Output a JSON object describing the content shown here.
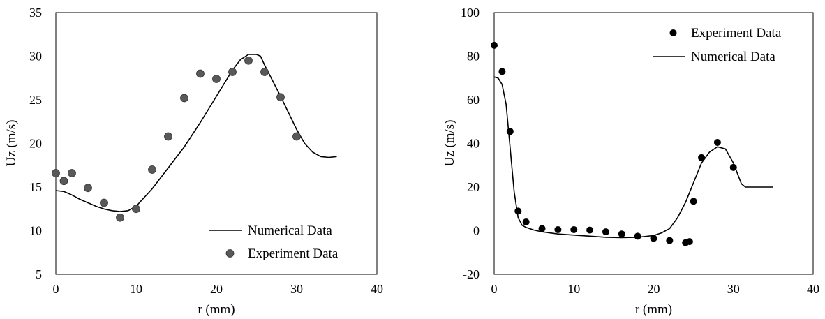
{
  "chart_data": [
    {
      "type": "scatter",
      "xlabel": "r (mm)",
      "ylabel": "Uz (m/s)",
      "xlim": [
        0,
        40
      ],
      "ylim": [
        5,
        35
      ],
      "xticks": [
        0,
        10,
        20,
        30,
        40
      ],
      "yticks": [
        5,
        10,
        15,
        20,
        25,
        30,
        35
      ],
      "legend_position": "bottom-right",
      "series": [
        {
          "name": "Numerical Data",
          "kind": "line",
          "color": "#000000",
          "x": [
            0,
            1,
            2,
            3,
            4,
            5,
            6,
            7,
            8,
            9,
            10,
            12,
            14,
            16,
            18,
            20,
            22,
            23,
            24,
            25,
            25.5,
            26,
            28,
            30,
            31,
            32,
            33,
            34,
            35
          ],
          "y": [
            14.6,
            14.5,
            14.1,
            13.6,
            13.2,
            12.8,
            12.5,
            12.3,
            12.2,
            12.3,
            12.8,
            14.8,
            17.2,
            19.6,
            22.4,
            25.4,
            28.4,
            29.6,
            30.2,
            30.2,
            30.0,
            29.0,
            25.4,
            21.6,
            20.0,
            19.0,
            18.5,
            18.4,
            18.5
          ]
        },
        {
          "name": "Experiment Data",
          "kind": "scatter",
          "color": "#595959",
          "x": [
            0,
            1,
            2,
            4,
            6,
            8,
            10,
            12,
            14,
            16,
            18,
            20,
            22,
            24,
            26,
            28,
            30
          ],
          "y": [
            16.6,
            15.7,
            16.6,
            14.9,
            13.2,
            11.5,
            12.5,
            17.0,
            20.8,
            25.2,
            28.0,
            27.4,
            28.2,
            29.5,
            28.2,
            25.3,
            20.8
          ]
        }
      ]
    },
    {
      "type": "scatter",
      "xlabel": "r (mm)",
      "ylabel": "Uz (m/s)",
      "xlim": [
        0,
        40
      ],
      "ylim": [
        -20,
        100
      ],
      "xticks": [
        0,
        10,
        20,
        30,
        40
      ],
      "yticks": [
        -20,
        0,
        20,
        40,
        60,
        80,
        100
      ],
      "legend_position": "top-right",
      "series": [
        {
          "name": "Experiment Data",
          "kind": "scatter",
          "color": "#000000",
          "x": [
            0,
            1,
            2,
            3,
            4,
            6,
            8,
            10,
            12,
            14,
            16,
            18,
            20,
            22,
            24,
            24.5,
            25,
            26,
            28,
            30
          ],
          "y": [
            85,
            73,
            45.5,
            9,
            4,
            1,
            0.5,
            0.5,
            0.3,
            -0.5,
            -1.5,
            -2.5,
            -3.5,
            -4.5,
            -5.5,
            -5,
            13.5,
            33.5,
            40.5,
            29
          ],
          "markers": 20
        },
        {
          "name": "Numerical Data",
          "kind": "line",
          "color": "#000000",
          "x": [
            0,
            0.5,
            1,
            1.5,
            2,
            2.5,
            3,
            3.5,
            4,
            5,
            6,
            8,
            10,
            12,
            14,
            16,
            18,
            20,
            21,
            22,
            23,
            24,
            25,
            26,
            27,
            28,
            29,
            30,
            31,
            31.5,
            32,
            33,
            35
          ],
          "y": [
            70.5,
            70,
            67,
            58,
            38,
            18,
            6,
            2.5,
            1.5,
            0.3,
            -0.5,
            -1.5,
            -2,
            -2.5,
            -3,
            -3.2,
            -3,
            -2.2,
            -1,
            1,
            6,
            13,
            22,
            31,
            36,
            38.5,
            37.5,
            31,
            21.5,
            20,
            20,
            20,
            20
          ]
        }
      ]
    }
  ]
}
